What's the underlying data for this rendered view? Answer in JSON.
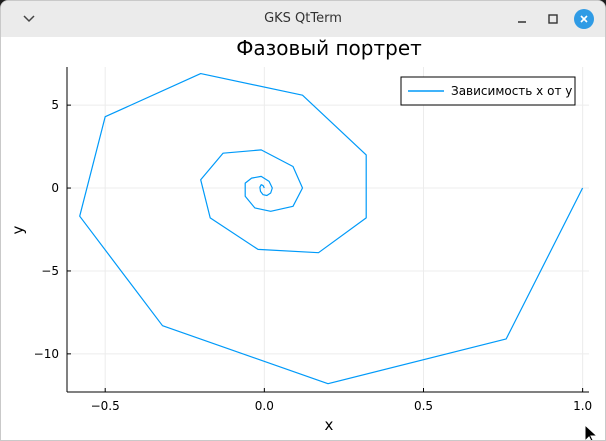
{
  "window": {
    "title": "GKS QtTerm"
  },
  "chart_data": {
    "type": "line",
    "title": "Фазовый портрет",
    "xlabel": "x",
    "ylabel": "y",
    "xlim": [
      -0.62,
      1.02
    ],
    "ylim": [
      -12.3,
      7.3
    ],
    "xticks": [
      -0.5,
      0.0,
      0.5,
      1.0
    ],
    "xtick_labels": [
      "−0.5",
      "0.0",
      "0.5",
      "1.0"
    ],
    "yticks": [
      -10,
      -5,
      0,
      5
    ],
    "ytick_labels": [
      "−10",
      "−5",
      "0",
      "5"
    ],
    "grid": true,
    "legend_position": "top-right",
    "colors": {
      "series": "#009af9",
      "axis": "#000000",
      "grid": "#ececec"
    },
    "series": [
      {
        "name": "Зависимость x от y",
        "x": [
          1.0,
          0.76,
          0.2,
          -0.32,
          -0.58,
          -0.5,
          -0.2,
          0.12,
          0.32,
          0.32,
          0.17,
          -0.02,
          -0.17,
          -0.2,
          -0.13,
          -0.01,
          0.09,
          0.12,
          0.09,
          0.02,
          -0.03,
          -0.06,
          -0.06,
          -0.04,
          -0.01,
          0.015,
          0.025,
          0.02,
          0.008,
          -0.004,
          -0.012,
          -0.014,
          -0.01,
          -0.004,
          0.0
        ],
        "y": [
          0.0,
          -9.1,
          -11.8,
          -8.3,
          -1.7,
          4.3,
          6.9,
          5.6,
          2.0,
          -1.8,
          -3.9,
          -3.7,
          -1.8,
          0.5,
          2.1,
          2.3,
          1.3,
          0.0,
          -1.1,
          -1.4,
          -1.2,
          -0.5,
          0.3,
          0.6,
          0.7,
          0.4,
          0.0,
          -0.3,
          -0.45,
          -0.4,
          -0.2,
          0.05,
          0.2,
          0.15,
          0.0
        ]
      }
    ]
  }
}
